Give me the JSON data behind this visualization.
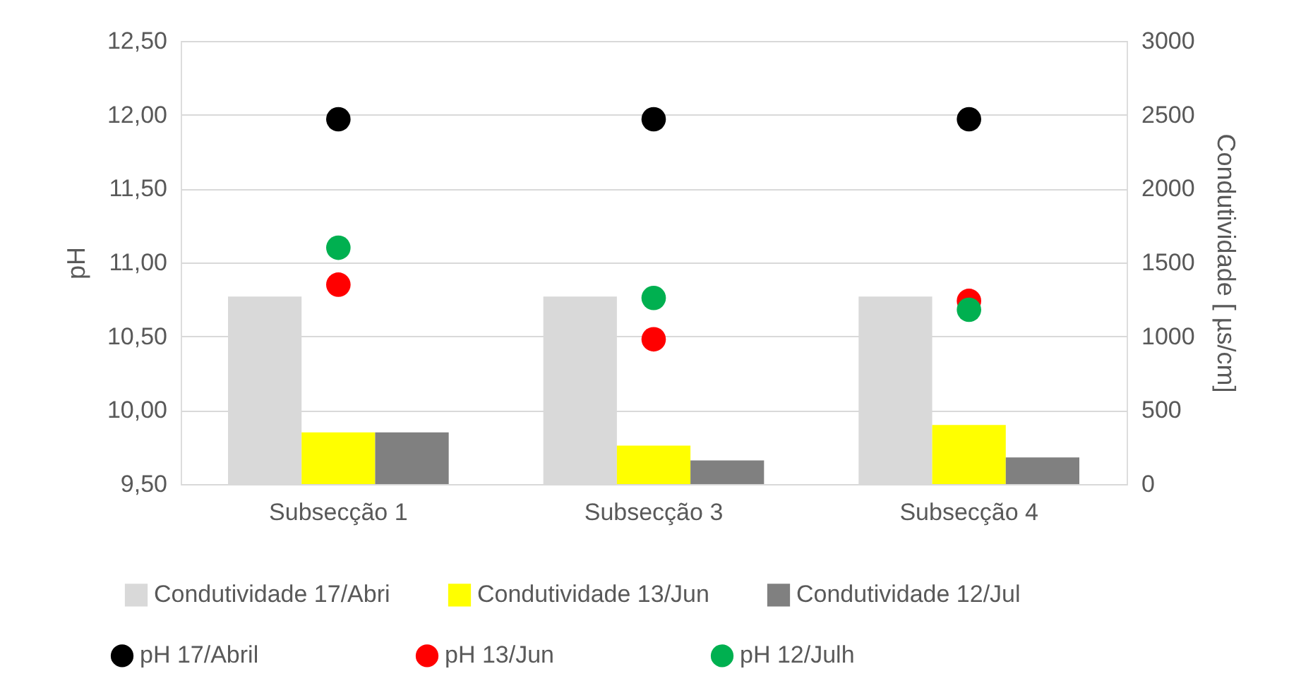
{
  "chart_data": {
    "type": "bar",
    "categories": [
      "Subsecção 1",
      "Subsecção 3",
      "Subsecção 4"
    ],
    "ylabel": "pH",
    "y2label": "Condutividade [ µs/cm]",
    "ylim": [
      9.5,
      12.5
    ],
    "yticks": [
      {
        "value": 9.5,
        "label": "9,50"
      },
      {
        "value": 10,
        "label": "10,00"
      },
      {
        "value": 10.5,
        "label": "10,50"
      },
      {
        "value": 11,
        "label": "11,00"
      },
      {
        "value": 11.5,
        "label": "11,50"
      },
      {
        "value": 12,
        "label": "12,00"
      },
      {
        "value": 12.5,
        "label": "12,50"
      }
    ],
    "y2lim": [
      0,
      3000
    ],
    "y2ticks": [
      0,
      500,
      1000,
      1500,
      2000,
      2500,
      3000
    ],
    "grid": "y",
    "legend": "bottom",
    "marker": "circle",
    "series": [
      {
        "name": "Condutividade 17/Abri",
        "type": "bar",
        "axis": "y2",
        "color": "#d9d9d9",
        "values": [
          1270,
          1270,
          1270
        ]
      },
      {
        "name": "Condutividade 13/Jun",
        "type": "bar",
        "axis": "y2",
        "color": "#ffff00",
        "values": [
          350,
          260,
          400
        ]
      },
      {
        "name": "Condutividade 12/Jul",
        "type": "bar",
        "axis": "y2",
        "color": "#808080",
        "values": [
          350,
          160,
          180
        ]
      },
      {
        "name": "pH 17/Abril",
        "type": "scatter",
        "axis": "y",
        "color": "#000000",
        "values": [
          11.97,
          11.97,
          11.97
        ]
      },
      {
        "name": "pH 13/Jun",
        "type": "scatter",
        "axis": "y",
        "color": "#ff0000",
        "values": [
          10.85,
          10.48,
          10.74
        ]
      },
      {
        "name": "pH 12/Julh",
        "type": "scatter",
        "axis": "y",
        "color": "#00b050",
        "values": [
          11.1,
          10.76,
          10.68
        ]
      }
    ]
  }
}
